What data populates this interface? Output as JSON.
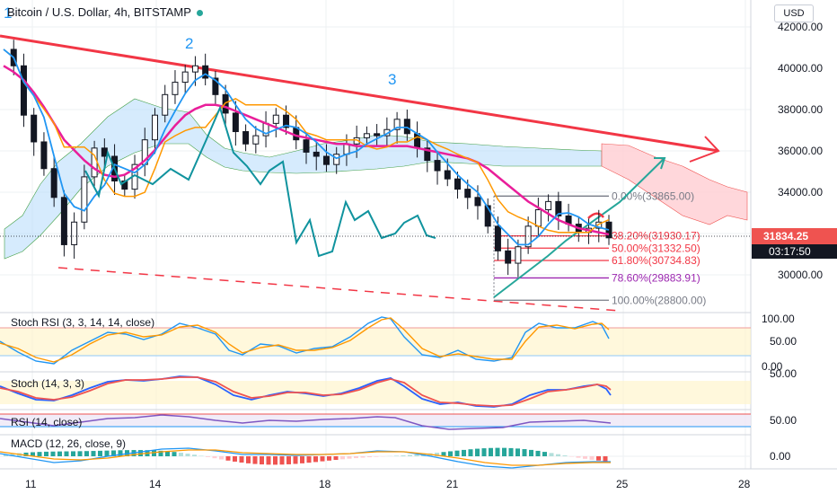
{
  "header": {
    "title": "Bitcoin / U.S. Dollar, 4h, BITSTAMP",
    "currency_button": "USD"
  },
  "price_box": {
    "last_price": "31834.25",
    "countdown": "03:17:50",
    "color": "#ef5350"
  },
  "waves": [
    "1",
    "2",
    "3"
  ],
  "chart_data": {
    "type": "line",
    "title": "Bitcoin / U.S. Dollar, 4h, BITSTAMP",
    "price_axis": {
      "ticks": [
        "42000.00",
        "40000.00",
        "38000.00",
        "36000.00",
        "34000.00",
        "32000.00",
        "30000.00"
      ],
      "values": [
        42000,
        40000,
        38000,
        36000,
        34000,
        32000,
        30000
      ],
      "ylim": [
        28200,
        43400
      ]
    },
    "time_axis": {
      "ticks": [
        "11",
        "14",
        "18",
        "21",
        "25",
        "28"
      ]
    },
    "fib_levels": [
      {
        "label": "0.00%(33865.00)",
        "value": 33865,
        "color": "#787b86"
      },
      {
        "label": "38.20%(31930.17)",
        "value": 31930.17,
        "color": "#f23645"
      },
      {
        "label": "50.00%(31332.50)",
        "value": 31332.5,
        "color": "#f23645"
      },
      {
        "label": "61.80%(30734.83)",
        "value": 30734.83,
        "color": "#f23645"
      },
      {
        "label": "78.60%(29883.91)",
        "value": 29883.91,
        "color": "#9c27b0"
      },
      {
        "label": "100.00%(28800.00)",
        "value": 28800,
        "color": "#787b86"
      }
    ],
    "price_series": [
      41000,
      40200,
      37800,
      36500,
      35200,
      33800,
      31500,
      32600,
      34800,
      36200,
      35800,
      34600,
      34200,
      35400,
      36600,
      37800,
      38800,
      39400,
      39900,
      40200,
      39600,
      38800,
      37900,
      37000,
      36400,
      36800,
      37400,
      37800,
      37200,
      36600,
      36000,
      35800,
      35400,
      35900,
      36400,
      36700,
      36900,
      36800,
      37100,
      37600,
      36900,
      36200,
      35600,
      35100,
      34700,
      34200,
      33800,
      33400,
      32400,
      31200,
      30600,
      31400,
      32400,
      33200,
      33600,
      32900,
      32500,
      32100,
      32300,
      32600,
      31834.25
    ],
    "ma_series": [
      40200,
      39900,
      39500,
      38900,
      38200,
      37400,
      36600,
      36100,
      35600,
      35200,
      34900,
      34800,
      34900,
      35200,
      35600,
      36100,
      36700,
      37300,
      37800,
      38100,
      38300,
      38300,
      38200,
      38000,
      37800,
      37600,
      37400,
      37200,
      37000,
      36800,
      36700,
      36600,
      36500,
      36400,
      36400,
      36300,
      36300,
      36300,
      36300,
      36300,
      36300,
      36200,
      36100,
      36000,
      35900,
      35800,
      35700,
      35500,
      35200,
      34800,
      34400,
      34000,
      33600,
      33300,
      33000,
      32700,
      32500,
      32300,
      32200,
      32100,
      32000
    ],
    "panes": [
      {
        "name": "Stoch RSI (3, 3, 14, 14, close)",
        "ticks": [
          "100.00",
          "50.00",
          "0.00"
        ]
      },
      {
        "name": "Stoch (14, 3, 3)",
        "ticks": [
          "50.00"
        ]
      },
      {
        "name": "RSI (14, close)",
        "ticks": [
          "50.00"
        ]
      },
      {
        "name": "MACD (12, 26, close, 9)",
        "ticks": [
          "0.00"
        ]
      }
    ],
    "colors": {
      "up": "#26a69a",
      "down": "#ef5350",
      "trendline": "#f23645",
      "ma": "#e91e9a",
      "kijun": "#ff9800",
      "tenkan": "#2196f3",
      "lagging": "#10939e"
    }
  }
}
